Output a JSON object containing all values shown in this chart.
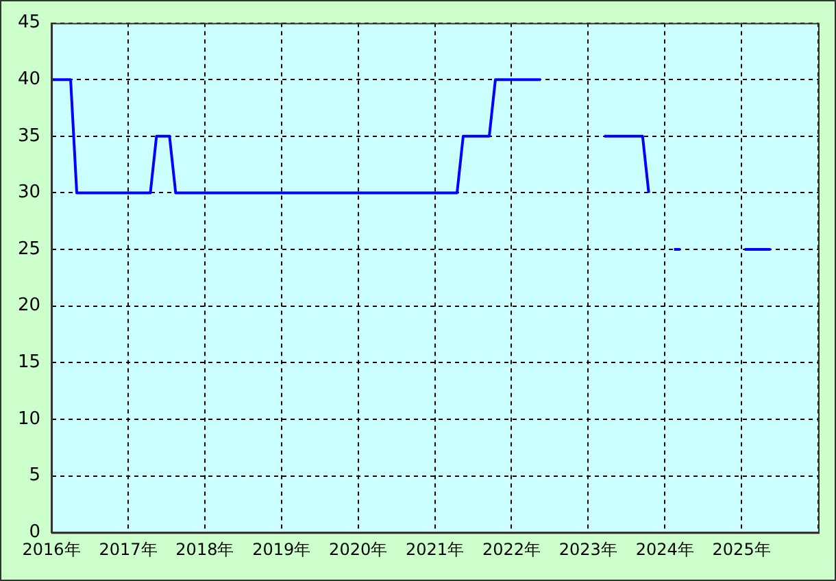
{
  "chart_data": {
    "type": "line",
    "x": [
      2016.0,
      2016.25,
      2016.33,
      2017.29,
      2017.37,
      2017.54,
      2017.62,
      2021.29,
      2021.37,
      2021.71,
      2021.79,
      2022.38,
      2022.8,
      2023.21,
      2023.71,
      2023.79,
      2023.95,
      2024.12,
      2024.2,
      2024.6,
      2025.04,
      2025.38
    ],
    "series": [
      {
        "color": "#0000ff",
        "values": [
          40,
          40,
          30,
          30,
          35,
          35,
          30,
          30,
          35,
          35,
          40,
          40,
          null,
          35,
          35,
          30,
          null,
          25,
          25,
          null,
          25,
          25
        ]
      }
    ],
    "xlim": [
      2016,
      2026
    ],
    "xticks": [
      {
        "value": 2016,
        "label": "2016年"
      },
      {
        "value": 2017,
        "label": "2017年"
      },
      {
        "value": 2018,
        "label": "2018年"
      },
      {
        "value": 2019,
        "label": "2019年"
      },
      {
        "value": 2020,
        "label": "2020年"
      },
      {
        "value": 2021,
        "label": "2021年"
      },
      {
        "value": 2022,
        "label": "2022年"
      },
      {
        "value": 2023,
        "label": "2023年"
      },
      {
        "value": 2024,
        "label": "2024年"
      },
      {
        "value": 2025,
        "label": "2025年"
      },
      {
        "value": 2026,
        "label": null
      }
    ],
    "ylim": [
      0,
      45
    ],
    "yticks": [
      0,
      5,
      10,
      15,
      20,
      25,
      30,
      35,
      40,
      45
    ],
    "grid": true,
    "legend": false,
    "marker": "none",
    "line_style": "solid"
  }
}
